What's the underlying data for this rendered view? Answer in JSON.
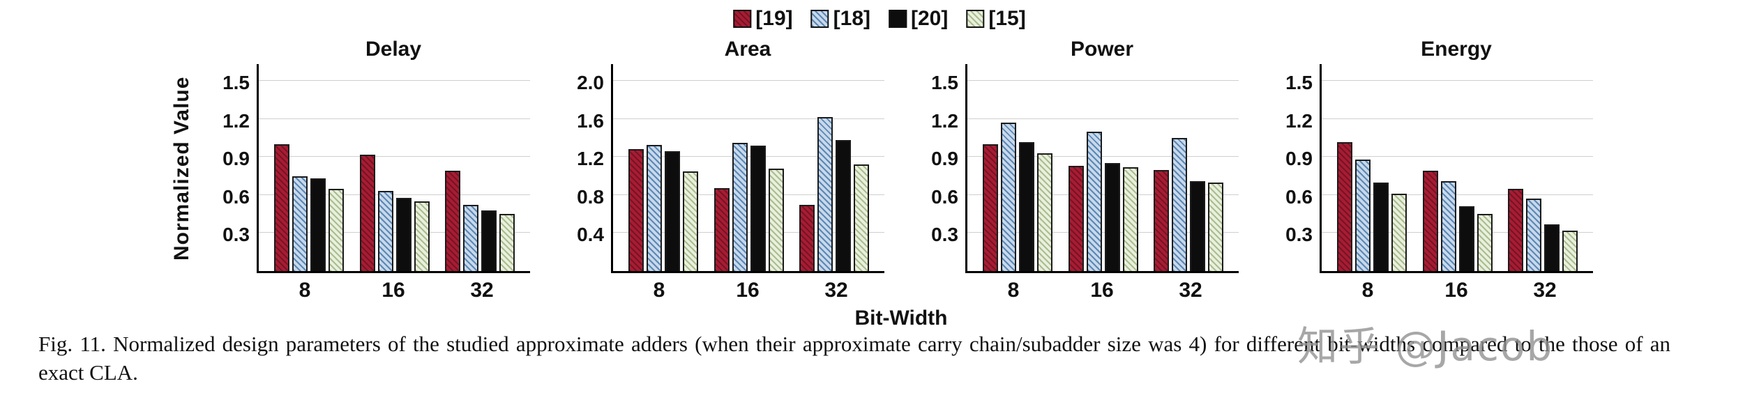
{
  "legend": {
    "items": [
      {
        "label": "[19]",
        "color": "#a81c33",
        "pattern": "diag",
        "hatch": "rgba(0,0,0,0.30)"
      },
      {
        "label": "[18]",
        "color": "#c8d9eb",
        "pattern": "diag",
        "hatch": "#5b87b5"
      },
      {
        "label": "[20]",
        "color": "#0d0d0d",
        "pattern": "solid",
        "hatch": ""
      },
      {
        "label": "[15]",
        "color": "#eaf0dd",
        "pattern": "diag",
        "hatch": "#a9bd8f"
      }
    ]
  },
  "axis": {
    "y_label": "Normalized Value",
    "x_label": "Bit-Width"
  },
  "caption": "Fig. 11.   Normalized design parameters of the studied approximate adders (when their approximate carry chain/subadder size was 4) for different bit-widths compared to the those of an exact CLA.",
  "watermark": "知乎 @Jacob",
  "chart_data": [
    {
      "type": "bar",
      "title": "Delay",
      "categories": [
        "8",
        "16",
        "32"
      ],
      "yticks": [
        0.3,
        0.6,
        0.9,
        1.2,
        1.5
      ],
      "ylim": [
        0,
        1.65
      ],
      "series": [
        {
          "name": "[19]",
          "values": [
            1.0,
            0.92,
            0.79
          ]
        },
        {
          "name": "[18]",
          "values": [
            0.75,
            0.63,
            0.52
          ]
        },
        {
          "name": "[20]",
          "values": [
            0.73,
            0.58,
            0.48
          ]
        },
        {
          "name": "[15]",
          "values": [
            0.65,
            0.55,
            0.45
          ]
        }
      ]
    },
    {
      "type": "bar",
      "title": "Area",
      "categories": [
        "8",
        "16",
        "32"
      ],
      "yticks": [
        0.4,
        0.8,
        1.2,
        1.6,
        2.0
      ],
      "ylim": [
        0,
        2.2
      ],
      "series": [
        {
          "name": "[19]",
          "values": [
            1.28,
            0.87,
            0.7
          ]
        },
        {
          "name": "[18]",
          "values": [
            1.33,
            1.35,
            1.62
          ]
        },
        {
          "name": "[20]",
          "values": [
            1.26,
            1.32,
            1.38
          ]
        },
        {
          "name": "[15]",
          "values": [
            1.05,
            1.08,
            1.12
          ]
        }
      ]
    },
    {
      "type": "bar",
      "title": "Power",
      "categories": [
        "8",
        "16",
        "32"
      ],
      "yticks": [
        0.3,
        0.6,
        0.9,
        1.2,
        1.5
      ],
      "ylim": [
        0,
        1.65
      ],
      "series": [
        {
          "name": "[19]",
          "values": [
            1.0,
            0.83,
            0.8
          ]
        },
        {
          "name": "[18]",
          "values": [
            1.17,
            1.1,
            1.05
          ]
        },
        {
          "name": "[20]",
          "values": [
            1.02,
            0.85,
            0.71
          ]
        },
        {
          "name": "[15]",
          "values": [
            0.93,
            0.82,
            0.7
          ]
        }
      ]
    },
    {
      "type": "bar",
      "title": "Energy",
      "categories": [
        "8",
        "16",
        "32"
      ],
      "yticks": [
        0.3,
        0.6,
        0.9,
        1.2,
        1.5
      ],
      "ylim": [
        0,
        1.65
      ],
      "series": [
        {
          "name": "[19]",
          "values": [
            1.02,
            0.79,
            0.65
          ]
        },
        {
          "name": "[18]",
          "values": [
            0.88,
            0.71,
            0.57
          ]
        },
        {
          "name": "[20]",
          "values": [
            0.7,
            0.51,
            0.37
          ]
        },
        {
          "name": "[15]",
          "values": [
            0.61,
            0.45,
            0.32
          ]
        }
      ]
    }
  ]
}
